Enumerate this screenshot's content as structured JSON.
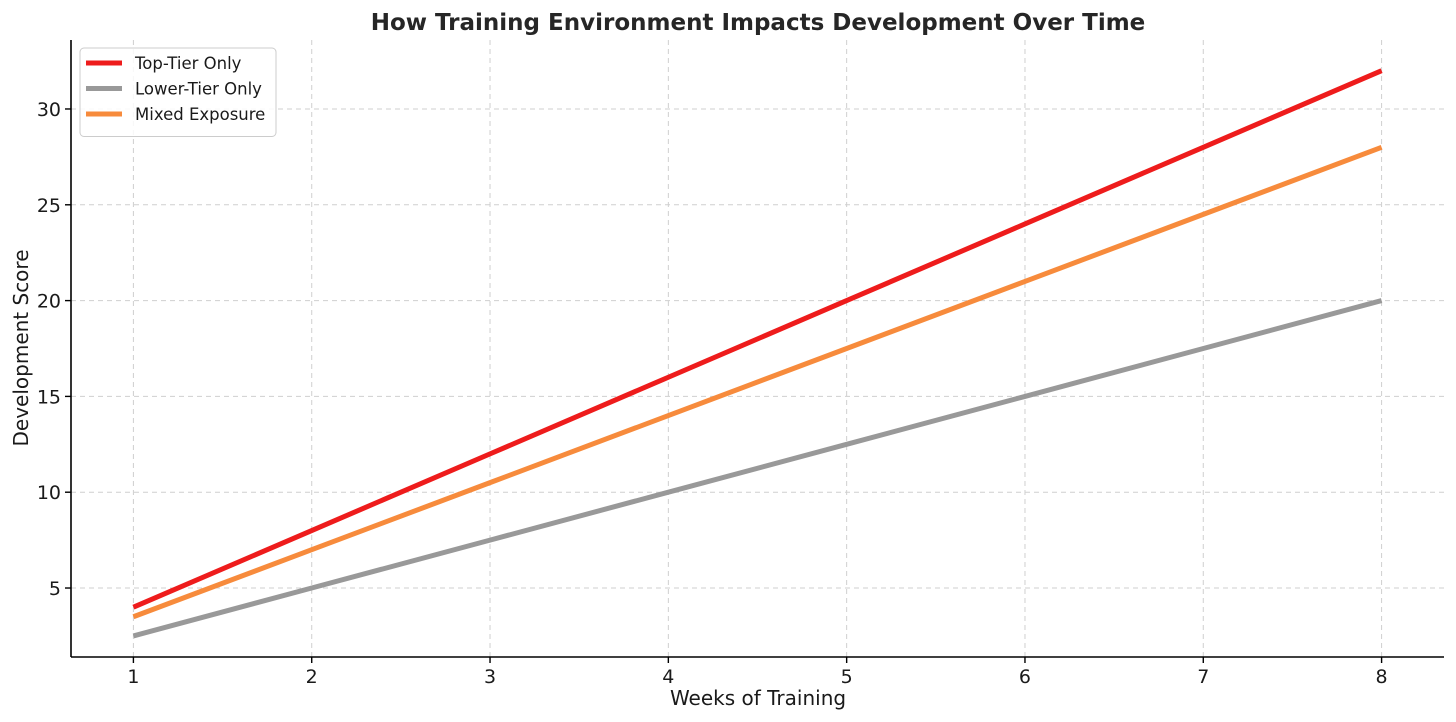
{
  "chart_data": {
    "type": "line",
    "title": "How Training Environment Impacts Development Over Time",
    "xlabel": "Weeks of Training",
    "ylabel": "Development Score",
    "x": [
      1,
      2,
      3,
      4,
      5,
      6,
      7,
      8
    ],
    "xlim": [
      0.65,
      8.35
    ],
    "ylim": [
      1.4,
      33.6
    ],
    "xticks": [
      1,
      2,
      3,
      4,
      5,
      6,
      7,
      8
    ],
    "yticks": [
      5,
      10,
      15,
      20,
      25,
      30
    ],
    "grid": true,
    "legend_position": "top-left",
    "series": [
      {
        "name": "Top-Tier Only",
        "color": "#ee1c1c",
        "values": [
          4,
          8,
          12,
          16,
          20,
          24,
          28,
          32
        ]
      },
      {
        "name": "Lower-Tier Only",
        "color": "#999999",
        "values": [
          2.5,
          5,
          7.5,
          10,
          12.5,
          15,
          17.5,
          20
        ]
      },
      {
        "name": "Mixed Exposure",
        "color": "#f78b3c",
        "values": [
          3.5,
          7,
          10.5,
          14,
          17.5,
          21,
          24.5,
          28
        ]
      }
    ]
  }
}
